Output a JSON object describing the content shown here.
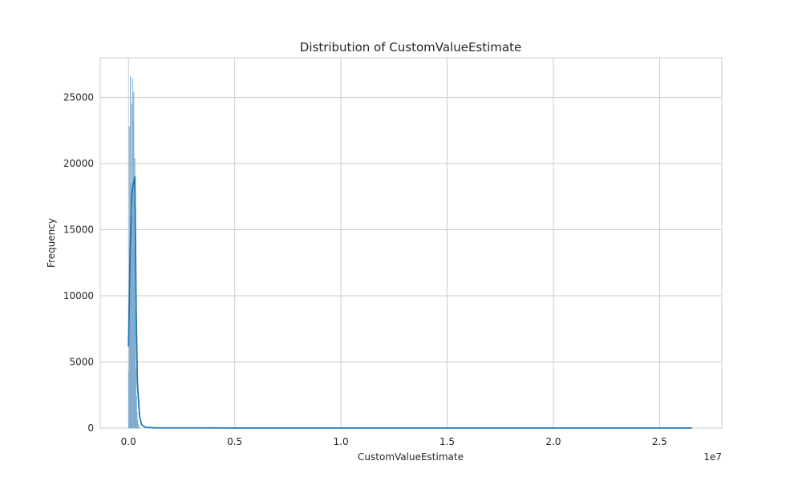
{
  "chart_data": {
    "type": "histogram",
    "title": "Distribution of CustomValueEstimate",
    "xlabel": "CustomValueEstimate",
    "ylabel": "Frequency",
    "x_offset_label": "1e7",
    "xlim": [
      -1330000,
      27930000
    ],
    "ylim": [
      0,
      28000
    ],
    "grid": true,
    "x_ticks": [
      {
        "value": 0,
        "label": "0.0"
      },
      {
        "value": 5000000,
        "label": "0.5"
      },
      {
        "value": 10000000,
        "label": "1.0"
      },
      {
        "value": 15000000,
        "label": "1.5"
      },
      {
        "value": 20000000,
        "label": "2.0"
      },
      {
        "value": 25000000,
        "label": "2.5"
      }
    ],
    "y_ticks": [
      {
        "value": 0,
        "label": "0"
      },
      {
        "value": 5000,
        "label": "5000"
      },
      {
        "value": 10000,
        "label": "10000"
      },
      {
        "value": 15000,
        "label": "15000"
      },
      {
        "value": 20000,
        "label": "20000"
      },
      {
        "value": 25000,
        "label": "25000"
      }
    ],
    "bins": [
      {
        "x0": 0,
        "x1": 26000,
        "count": 4300
      },
      {
        "x0": 26000,
        "x1": 52000,
        "count": 22800
      },
      {
        "x0": 52000,
        "x1": 78000,
        "count": 13500
      },
      {
        "x0": 78000,
        "x1": 104000,
        "count": 26600
      },
      {
        "x0": 104000,
        "x1": 130000,
        "count": 18500
      },
      {
        "x0": 130000,
        "x1": 156000,
        "count": 24500
      },
      {
        "x0": 156000,
        "x1": 182000,
        "count": 16000
      },
      {
        "x0": 182000,
        "x1": 208000,
        "count": 26400
      },
      {
        "x0": 208000,
        "x1": 234000,
        "count": 23300
      },
      {
        "x0": 234000,
        "x1": 260000,
        "count": 25400
      },
      {
        "x0": 260000,
        "x1": 286000,
        "count": 19000
      },
      {
        "x0": 286000,
        "x1": 312000,
        "count": 20400
      },
      {
        "x0": 312000,
        "x1": 338000,
        "count": 9000
      },
      {
        "x0": 338000,
        "x1": 364000,
        "count": 4500
      },
      {
        "x0": 364000,
        "x1": 390000,
        "count": 2400
      },
      {
        "x0": 390000,
        "x1": 416000,
        "count": 1200
      },
      {
        "x0": 416000,
        "x1": 442000,
        "count": 600
      },
      {
        "x0": 442000,
        "x1": 468000,
        "count": 300
      },
      {
        "x0": 468000,
        "x1": 494000,
        "count": 150
      },
      {
        "x0": 494000,
        "x1": 520000,
        "count": 80
      }
    ],
    "kde": [
      {
        "x": 0,
        "y": 6200
      },
      {
        "x": 80000,
        "y": 13500
      },
      {
        "x": 150000,
        "y": 17600
      },
      {
        "x": 230000,
        "y": 18500
      },
      {
        "x": 300000,
        "y": 19000
      },
      {
        "x": 360000,
        "y": 9000
      },
      {
        "x": 420000,
        "y": 3400
      },
      {
        "x": 520000,
        "y": 900
      },
      {
        "x": 620000,
        "y": 250
      },
      {
        "x": 800000,
        "y": 60
      },
      {
        "x": 1200000,
        "y": 20
      },
      {
        "x": 5000000,
        "y": 10
      },
      {
        "x": 10000000,
        "y": 8
      },
      {
        "x": 15000000,
        "y": 8
      },
      {
        "x": 20000000,
        "y": 8
      },
      {
        "x": 26500000,
        "y": 8
      }
    ],
    "colors": {
      "bar_fill": "#9bbfd9",
      "bar_edge": "#6fa0c6",
      "kde_line": "#1f77b4",
      "grid": "#cccccc",
      "spine": "#cccccc",
      "text": "#262626"
    }
  }
}
